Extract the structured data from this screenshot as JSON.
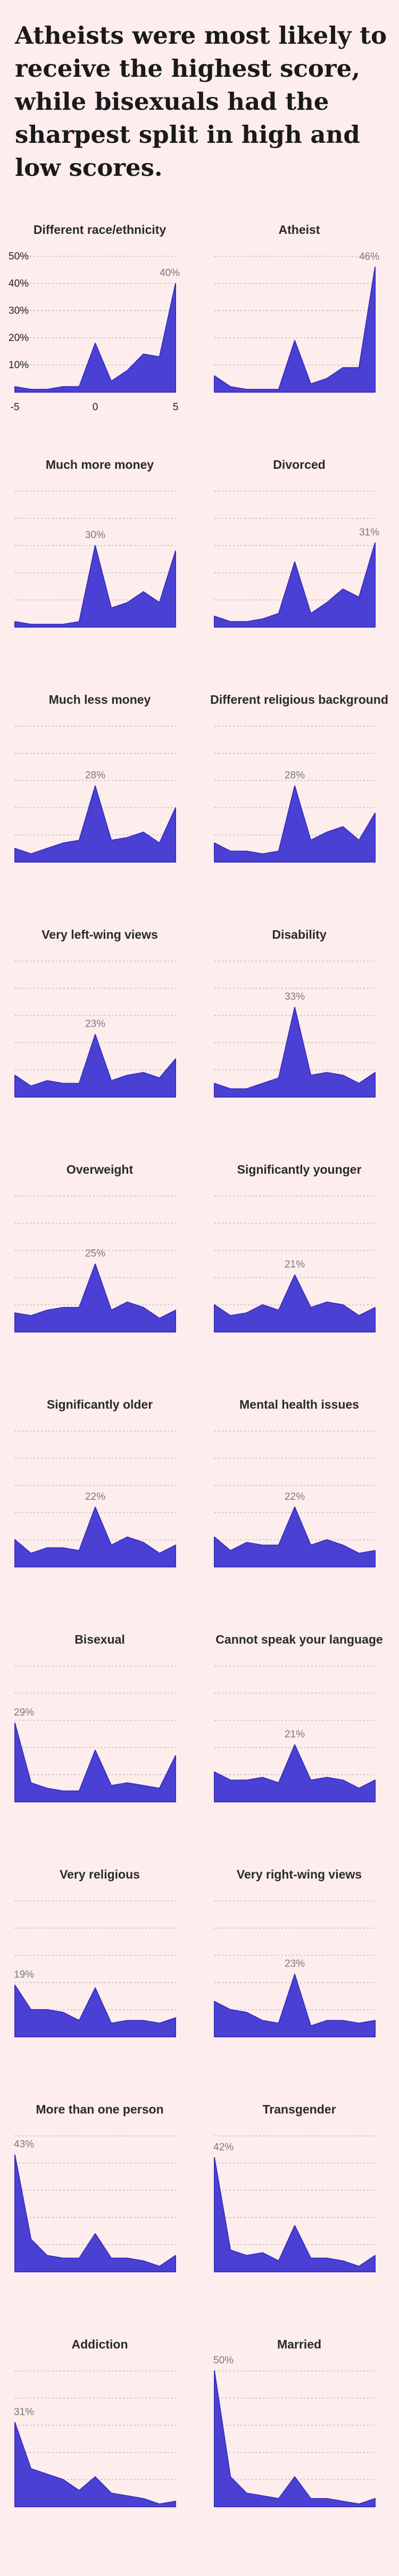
{
  "headline": "Atheists were most likely to receive the highest score, while bisexuals had the sharpest split in high and low scores.",
  "colors": {
    "fill": "#4a41d4",
    "stroke": "#3a31c0",
    "background": "#fdeded"
  },
  "chart_data": {
    "type": "area",
    "grid": true,
    "ylim": [
      0,
      50
    ],
    "yticks": [
      "10%",
      "20%",
      "30%",
      "40%",
      "50%"
    ],
    "x": [
      -5,
      -4,
      -3,
      -2,
      -1,
      0,
      1,
      2,
      3,
      4,
      5
    ],
    "xticks": [
      "-5",
      "0",
      "5"
    ],
    "panels": [
      {
        "title": "Different race/ethnicity",
        "peak_label": "40%",
        "values": [
          2,
          1,
          1,
          2,
          2,
          18,
          4,
          8,
          14,
          13,
          40
        ]
      },
      {
        "title": "Atheist",
        "peak_label": "46%",
        "values": [
          6,
          2,
          1,
          1,
          1,
          19,
          3,
          5,
          9,
          9,
          46
        ]
      },
      {
        "title": "Much more money",
        "peak_label": "30%",
        "values": [
          2,
          1,
          1,
          1,
          2,
          30,
          7,
          9,
          13,
          9,
          28
        ]
      },
      {
        "title": "Divorced",
        "peak_label": "31%",
        "values": [
          4,
          2,
          2,
          3,
          5,
          24,
          5,
          9,
          14,
          11,
          31
        ]
      },
      {
        "title": "Much less money",
        "peak_label": "28%",
        "values": [
          5,
          3,
          5,
          7,
          8,
          28,
          8,
          9,
          11,
          7,
          20
        ]
      },
      {
        "title": "Different religious background",
        "peak_label": "28%",
        "values": [
          7,
          4,
          4,
          3,
          4,
          28,
          8,
          11,
          13,
          8,
          18
        ]
      },
      {
        "title": "Very left-wing views",
        "peak_label": "23%",
        "values": [
          8,
          4,
          6,
          5,
          5,
          23,
          6,
          8,
          9,
          7,
          14
        ]
      },
      {
        "title": "Disability",
        "peak_label": "33%",
        "values": [
          5,
          3,
          3,
          5,
          7,
          33,
          8,
          9,
          8,
          5,
          9
        ]
      },
      {
        "title": "Overweight",
        "peak_label": "25%",
        "values": [
          7,
          6,
          8,
          9,
          9,
          25,
          8,
          11,
          9,
          5,
          8
        ]
      },
      {
        "title": "Significantly younger",
        "peak_label": "21%",
        "values": [
          10,
          6,
          7,
          10,
          8,
          21,
          9,
          11,
          10,
          6,
          9
        ]
      },
      {
        "title": "Significantly older",
        "peak_label": "22%",
        "values": [
          10,
          5,
          7,
          7,
          6,
          22,
          8,
          11,
          9,
          5,
          8
        ]
      },
      {
        "title": "Mental health issues",
        "peak_label": "22%",
        "values": [
          11,
          6,
          9,
          8,
          8,
          22,
          8,
          10,
          8,
          5,
          6
        ]
      },
      {
        "title": "Bisexual",
        "peak_label": "29%",
        "values": [
          29,
          7,
          5,
          4,
          4,
          19,
          6,
          7,
          6,
          5,
          17
        ]
      },
      {
        "title": "Cannot speak your language",
        "peak_label": "21%",
        "values": [
          11,
          8,
          8,
          9,
          7,
          21,
          8,
          9,
          8,
          5,
          8
        ]
      },
      {
        "title": "Very religious",
        "peak_label": "19%",
        "values": [
          19,
          10,
          10,
          9,
          6,
          18,
          5,
          6,
          6,
          5,
          7
        ]
      },
      {
        "title": "Very right-wing views",
        "peak_label": "23%",
        "values": [
          13,
          10,
          9,
          6,
          5,
          23,
          4,
          6,
          6,
          5,
          6
        ]
      },
      {
        "title": "More than one person",
        "peak_label": "43%",
        "values": [
          43,
          12,
          6,
          5,
          5,
          14,
          5,
          5,
          4,
          2,
          6
        ]
      },
      {
        "title": "Transgender",
        "peak_label": "42%",
        "values": [
          42,
          8,
          6,
          7,
          4,
          17,
          5,
          5,
          4,
          2,
          6
        ]
      },
      {
        "title": "Addiction",
        "peak_label": "31%",
        "values": [
          31,
          14,
          12,
          10,
          6,
          11,
          5,
          4,
          3,
          1,
          2
        ]
      },
      {
        "title": "Married",
        "peak_label": "50%",
        "values": [
          50,
          11,
          5,
          4,
          3,
          11,
          3,
          3,
          2,
          1,
          3
        ]
      }
    ]
  }
}
